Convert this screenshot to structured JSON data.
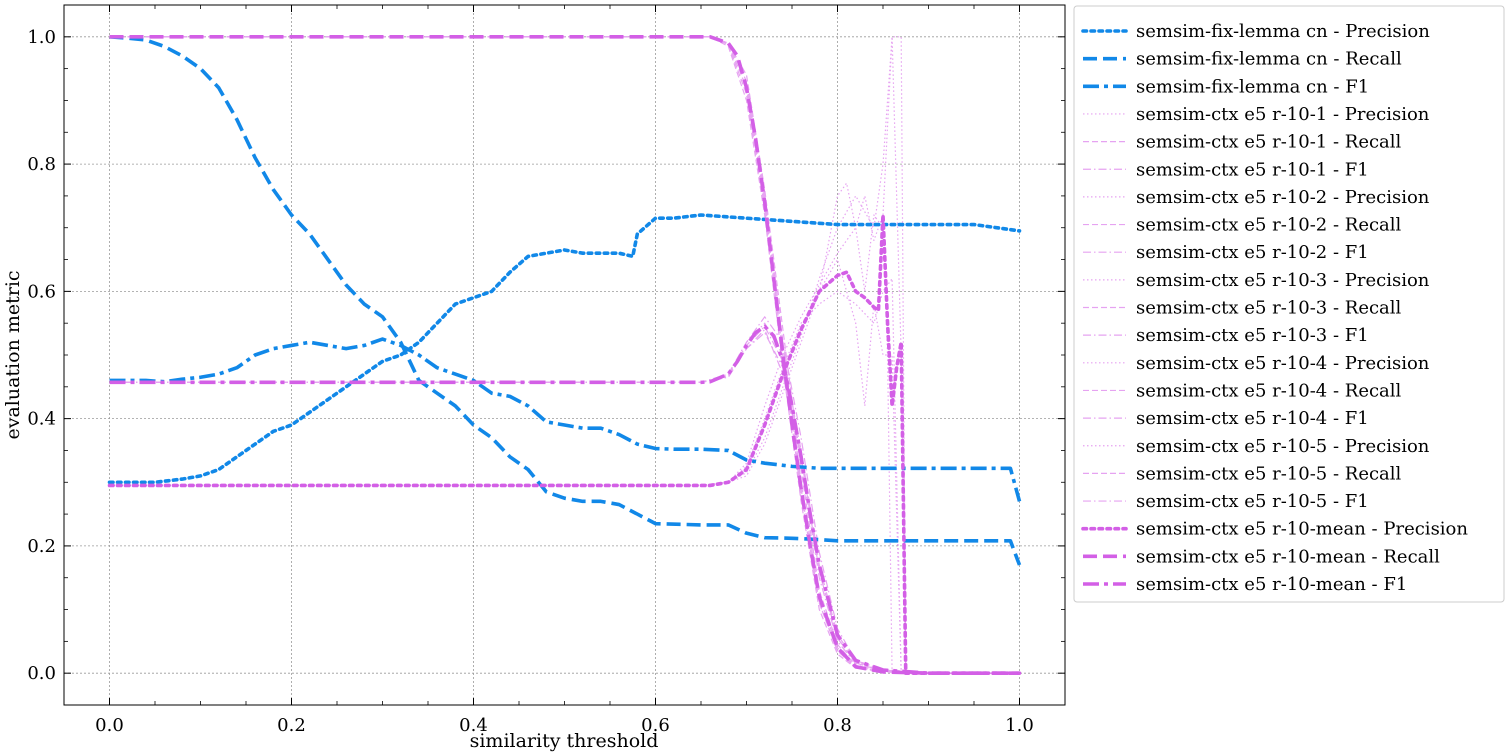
{
  "chart_data": {
    "type": "line",
    "xlabel": "similarity threshold",
    "ylabel": "evaluation metric",
    "xlim": [
      -0.05,
      1.05
    ],
    "ylim": [
      -0.05,
      1.05
    ],
    "xticks": [
      0.0,
      0.2,
      0.4,
      0.6,
      0.8,
      1.0
    ],
    "xtick_labels": [
      "0.0",
      "0.2",
      "0.4",
      "0.6",
      "0.8",
      "1.0"
    ],
    "yticks": [
      0.0,
      0.2,
      0.4,
      0.6,
      0.8,
      1.0
    ],
    "ytick_labels": [
      "0.0",
      "0.2",
      "0.4",
      "0.6",
      "0.8",
      "1.0"
    ],
    "grid": true,
    "legend_position": "outside-right",
    "colors": {
      "fix": "#1188e8",
      "ctx": "#d35fe6",
      "ctx_light": "#e6a3f1"
    },
    "series": [
      {
        "name": "semsim-fix-lemma cn - Precision",
        "group": "fix",
        "style": "dotted",
        "x": [
          0,
          0.05,
          0.08,
          0.1,
          0.12,
          0.14,
          0.16,
          0.18,
          0.2,
          0.22,
          0.24,
          0.26,
          0.28,
          0.3,
          0.32,
          0.34,
          0.36,
          0.38,
          0.4,
          0.42,
          0.44,
          0.46,
          0.48,
          0.5,
          0.52,
          0.54,
          0.56,
          0.575,
          0.58,
          0.6,
          0.62,
          0.65,
          0.7,
          0.75,
          0.8,
          0.85,
          0.9,
          0.95,
          1.0
        ],
        "y": [
          0.3,
          0.3,
          0.305,
          0.31,
          0.32,
          0.34,
          0.36,
          0.38,
          0.39,
          0.41,
          0.43,
          0.45,
          0.47,
          0.49,
          0.5,
          0.52,
          0.55,
          0.58,
          0.59,
          0.6,
          0.63,
          0.655,
          0.66,
          0.665,
          0.66,
          0.66,
          0.66,
          0.655,
          0.69,
          0.715,
          0.715,
          0.72,
          0.715,
          0.71,
          0.705,
          0.705,
          0.705,
          0.705,
          0.695
        ]
      },
      {
        "name": "semsim-fix-lemma cn - Recall",
        "group": "fix",
        "style": "dashed",
        "x": [
          0,
          0.02,
          0.04,
          0.06,
          0.08,
          0.1,
          0.12,
          0.14,
          0.16,
          0.18,
          0.2,
          0.22,
          0.24,
          0.26,
          0.28,
          0.3,
          0.32,
          0.34,
          0.36,
          0.38,
          0.4,
          0.42,
          0.44,
          0.46,
          0.48,
          0.5,
          0.52,
          0.54,
          0.56,
          0.58,
          0.6,
          0.65,
          0.68,
          0.7,
          0.72,
          0.75,
          0.78,
          0.8,
          0.9,
          0.99,
          1.0
        ],
        "y": [
          1.0,
          0.998,
          0.995,
          0.985,
          0.97,
          0.95,
          0.92,
          0.87,
          0.81,
          0.76,
          0.72,
          0.69,
          0.65,
          0.61,
          0.58,
          0.56,
          0.52,
          0.46,
          0.44,
          0.42,
          0.39,
          0.37,
          0.34,
          0.32,
          0.285,
          0.275,
          0.27,
          0.27,
          0.265,
          0.25,
          0.235,
          0.233,
          0.233,
          0.22,
          0.213,
          0.212,
          0.21,
          0.208,
          0.208,
          0.208,
          0.17
        ]
      },
      {
        "name": "semsim-fix-lemma cn - F1",
        "group": "fix",
        "style": "dashdot",
        "x": [
          0,
          0.04,
          0.06,
          0.08,
          0.1,
          0.12,
          0.14,
          0.16,
          0.18,
          0.2,
          0.22,
          0.24,
          0.26,
          0.28,
          0.3,
          0.32,
          0.34,
          0.36,
          0.38,
          0.4,
          0.42,
          0.44,
          0.46,
          0.48,
          0.5,
          0.52,
          0.54,
          0.56,
          0.58,
          0.6,
          0.62,
          0.65,
          0.68,
          0.7,
          0.72,
          0.75,
          0.78,
          0.8,
          0.9,
          0.99,
          1.0
        ],
        "y": [
          0.46,
          0.46,
          0.458,
          0.462,
          0.465,
          0.47,
          0.48,
          0.5,
          0.51,
          0.515,
          0.52,
          0.515,
          0.51,
          0.515,
          0.525,
          0.515,
          0.5,
          0.48,
          0.47,
          0.46,
          0.44,
          0.435,
          0.42,
          0.395,
          0.39,
          0.385,
          0.385,
          0.375,
          0.36,
          0.353,
          0.352,
          0.352,
          0.35,
          0.335,
          0.33,
          0.325,
          0.322,
          0.322,
          0.322,
          0.322,
          0.27
        ]
      },
      {
        "name": "semsim-ctx e5 r-10-1 - Precision",
        "group": "ctx_light",
        "style": "dotted",
        "x": [
          0,
          0.65,
          0.68,
          0.7,
          0.72,
          0.74,
          0.76,
          0.78,
          0.8,
          0.82,
          0.83,
          0.84,
          0.85,
          0.86,
          0.87,
          0.875,
          0.88,
          1.0
        ],
        "y": [
          0.295,
          0.295,
          0.3,
          0.33,
          0.42,
          0.5,
          0.56,
          0.61,
          0.66,
          0.7,
          0.75,
          0.68,
          0.72,
          1.0,
          0.5,
          0.0,
          0.0,
          0.0
        ]
      },
      {
        "name": "semsim-ctx e5 r-10-1 - Recall",
        "group": "ctx_light",
        "style": "dashed",
        "x": [
          0,
          0.66,
          0.68,
          0.7,
          0.72,
          0.74,
          0.76,
          0.78,
          0.8,
          0.82,
          0.85,
          0.9,
          1.0
        ],
        "y": [
          1.0,
          1.0,
          0.99,
          0.93,
          0.75,
          0.52,
          0.3,
          0.12,
          0.04,
          0.01,
          0.003,
          0.0,
          0.0
        ]
      },
      {
        "name": "semsim-ctx e5 r-10-1 - F1",
        "group": "ctx_light",
        "style": "dashdot",
        "x": [
          0,
          0.65,
          0.68,
          0.7,
          0.72,
          0.74,
          0.76,
          0.78,
          0.8,
          0.82,
          0.85,
          0.9,
          1.0
        ],
        "y": [
          0.457,
          0.457,
          0.47,
          0.52,
          0.55,
          0.5,
          0.35,
          0.17,
          0.06,
          0.02,
          0.005,
          0.0,
          0.0
        ]
      },
      {
        "name": "semsim-ctx e5 r-10-2 - Precision",
        "group": "ctx_light",
        "style": "dotted",
        "x": [
          0,
          0.65,
          0.68,
          0.7,
          0.72,
          0.74,
          0.76,
          0.78,
          0.8,
          0.81,
          0.82,
          0.83,
          0.84,
          0.85,
          0.855,
          0.86,
          0.87,
          0.875,
          1.0
        ],
        "y": [
          0.295,
          0.295,
          0.3,
          0.31,
          0.36,
          0.44,
          0.52,
          0.6,
          0.75,
          0.77,
          0.7,
          0.6,
          0.72,
          0.7,
          0.5,
          0.0,
          0.0,
          0.0,
          0.0
        ]
      },
      {
        "name": "semsim-ctx e5 r-10-2 - Recall",
        "group": "ctx_light",
        "style": "dashed",
        "x": [
          0,
          0.66,
          0.68,
          0.7,
          0.72,
          0.74,
          0.76,
          0.78,
          0.8,
          0.82,
          0.85,
          0.9,
          1.0
        ],
        "y": [
          1.0,
          1.0,
          0.985,
          0.9,
          0.72,
          0.48,
          0.27,
          0.1,
          0.03,
          0.008,
          0.002,
          0.0,
          0.0
        ]
      },
      {
        "name": "semsim-ctx e5 r-10-2 - F1",
        "group": "ctx_light",
        "style": "dashdot",
        "x": [
          0,
          0.65,
          0.68,
          0.7,
          0.72,
          0.74,
          0.76,
          0.78,
          0.8,
          0.82,
          0.85,
          0.9,
          1.0
        ],
        "y": [
          0.457,
          0.457,
          0.465,
          0.51,
          0.54,
          0.47,
          0.33,
          0.15,
          0.05,
          0.015,
          0.004,
          0.0,
          0.0
        ]
      },
      {
        "name": "semsim-ctx e5 r-10-3 - Precision",
        "group": "ctx_light",
        "style": "dotted",
        "x": [
          0,
          0.65,
          0.68,
          0.7,
          0.72,
          0.74,
          0.76,
          0.78,
          0.8,
          0.82,
          0.83,
          0.84,
          0.85,
          0.86,
          0.87,
          1.0
        ],
        "y": [
          0.295,
          0.295,
          0.3,
          0.32,
          0.39,
          0.47,
          0.54,
          0.6,
          0.65,
          0.55,
          0.42,
          0.58,
          0.5,
          0.5,
          0.0,
          0.0
        ]
      },
      {
        "name": "semsim-ctx e5 r-10-3 - Recall",
        "group": "ctx_light",
        "style": "dashed",
        "x": [
          0,
          0.66,
          0.68,
          0.7,
          0.72,
          0.74,
          0.76,
          0.78,
          0.8,
          0.82,
          0.85,
          0.9,
          1.0
        ],
        "y": [
          1.0,
          1.0,
          0.99,
          0.92,
          0.74,
          0.5,
          0.28,
          0.11,
          0.035,
          0.01,
          0.003,
          0.0,
          0.0
        ]
      },
      {
        "name": "semsim-ctx e5 r-10-3 - F1",
        "group": "ctx_light",
        "style": "dashdot",
        "x": [
          0,
          0.65,
          0.68,
          0.7,
          0.72,
          0.74,
          0.76,
          0.78,
          0.8,
          0.82,
          0.85,
          0.9,
          1.0
        ],
        "y": [
          0.457,
          0.457,
          0.468,
          0.515,
          0.545,
          0.49,
          0.34,
          0.16,
          0.055,
          0.018,
          0.005,
          0.0,
          0.0
        ]
      },
      {
        "name": "semsim-ctx e5 r-10-4 - Precision",
        "group": "ctx_light",
        "style": "dotted",
        "x": [
          0,
          0.65,
          0.68,
          0.7,
          0.72,
          0.74,
          0.76,
          0.78,
          0.8,
          0.82,
          0.84,
          0.85,
          0.86,
          0.87,
          0.88,
          1.0
        ],
        "y": [
          0.295,
          0.295,
          0.3,
          0.325,
          0.4,
          0.48,
          0.55,
          0.58,
          0.6,
          0.58,
          0.55,
          0.6,
          0.62,
          0.0,
          0.0,
          0.0
        ]
      },
      {
        "name": "semsim-ctx e5 r-10-4 - Recall",
        "group": "ctx_light",
        "style": "dashed",
        "x": [
          0,
          0.66,
          0.68,
          0.7,
          0.72,
          0.74,
          0.76,
          0.78,
          0.8,
          0.82,
          0.85,
          0.9,
          1.0
        ],
        "y": [
          1.0,
          1.0,
          0.99,
          0.94,
          0.76,
          0.54,
          0.32,
          0.13,
          0.045,
          0.012,
          0.003,
          0.0,
          0.0
        ]
      },
      {
        "name": "semsim-ctx e5 r-10-4 - F1",
        "group": "ctx_light",
        "style": "dashdot",
        "x": [
          0,
          0.65,
          0.68,
          0.7,
          0.72,
          0.74,
          0.76,
          0.78,
          0.8,
          0.82,
          0.85,
          0.9,
          1.0
        ],
        "y": [
          0.457,
          0.457,
          0.47,
          0.52,
          0.56,
          0.52,
          0.37,
          0.19,
          0.07,
          0.02,
          0.006,
          0.0,
          0.0
        ]
      },
      {
        "name": "semsim-ctx e5 r-10-5 - Precision",
        "group": "ctx_light",
        "style": "dotted",
        "x": [
          0,
          0.65,
          0.68,
          0.7,
          0.72,
          0.74,
          0.76,
          0.78,
          0.8,
          0.82,
          0.84,
          0.85,
          0.86,
          0.87,
          0.875,
          1.0
        ],
        "y": [
          0.295,
          0.295,
          0.3,
          0.315,
          0.37,
          0.45,
          0.53,
          0.62,
          0.7,
          0.75,
          0.7,
          0.8,
          1.0,
          1.0,
          0.0,
          0.0
        ]
      },
      {
        "name": "semsim-ctx e5 r-10-5 - Recall",
        "group": "ctx_light",
        "style": "dashed",
        "x": [
          0,
          0.66,
          0.68,
          0.7,
          0.72,
          0.74,
          0.76,
          0.78,
          0.8,
          0.82,
          0.85,
          0.9,
          1.0
        ],
        "y": [
          1.0,
          1.0,
          0.988,
          0.91,
          0.73,
          0.5,
          0.29,
          0.11,
          0.035,
          0.009,
          0.002,
          0.0,
          0.0
        ]
      },
      {
        "name": "semsim-ctx e5 r-10-5 - F1",
        "group": "ctx_light",
        "style": "dashdot",
        "x": [
          0,
          0.65,
          0.68,
          0.7,
          0.72,
          0.74,
          0.76,
          0.78,
          0.8,
          0.82,
          0.85,
          0.9,
          1.0
        ],
        "y": [
          0.457,
          0.457,
          0.466,
          0.51,
          0.535,
          0.48,
          0.34,
          0.16,
          0.055,
          0.016,
          0.004,
          0.0,
          0.0
        ]
      },
      {
        "name": "semsim-ctx e5 r-10-mean - Precision",
        "group": "ctx",
        "style": "dotted",
        "x": [
          0,
          0.66,
          0.68,
          0.7,
          0.72,
          0.74,
          0.76,
          0.78,
          0.8,
          0.81,
          0.82,
          0.83,
          0.84,
          0.845,
          0.85,
          0.855,
          0.86,
          0.865,
          0.87,
          0.875,
          0.88,
          0.9,
          1.0
        ],
        "y": [
          0.295,
          0.295,
          0.3,
          0.32,
          0.39,
          0.47,
          0.54,
          0.6,
          0.625,
          0.63,
          0.6,
          0.59,
          0.575,
          0.57,
          0.72,
          0.55,
          0.42,
          0.48,
          0.52,
          0.0,
          0.0,
          0.0,
          0.0
        ]
      },
      {
        "name": "semsim-ctx e5 r-10-mean - Recall",
        "group": "ctx",
        "style": "dashed",
        "x": [
          0,
          0.66,
          0.68,
          0.69,
          0.7,
          0.71,
          0.72,
          0.73,
          0.74,
          0.75,
          0.76,
          0.77,
          0.78,
          0.8,
          0.82,
          0.85,
          0.9,
          1.0
        ],
        "y": [
          1.0,
          1.0,
          0.99,
          0.97,
          0.92,
          0.84,
          0.74,
          0.62,
          0.5,
          0.39,
          0.29,
          0.2,
          0.12,
          0.04,
          0.01,
          0.002,
          0.0,
          0.0
        ]
      },
      {
        "name": "semsim-ctx e5 r-10-mean - F1",
        "group": "ctx",
        "style": "dashdot",
        "x": [
          0,
          0.65,
          0.66,
          0.68,
          0.69,
          0.7,
          0.71,
          0.72,
          0.73,
          0.74,
          0.75,
          0.76,
          0.77,
          0.78,
          0.8,
          0.82,
          0.85,
          0.9,
          1.0
        ],
        "y": [
          0.457,
          0.457,
          0.458,
          0.47,
          0.49,
          0.515,
          0.535,
          0.545,
          0.53,
          0.49,
          0.42,
          0.34,
          0.25,
          0.17,
          0.06,
          0.02,
          0.005,
          0.0,
          0.0
        ]
      }
    ]
  }
}
